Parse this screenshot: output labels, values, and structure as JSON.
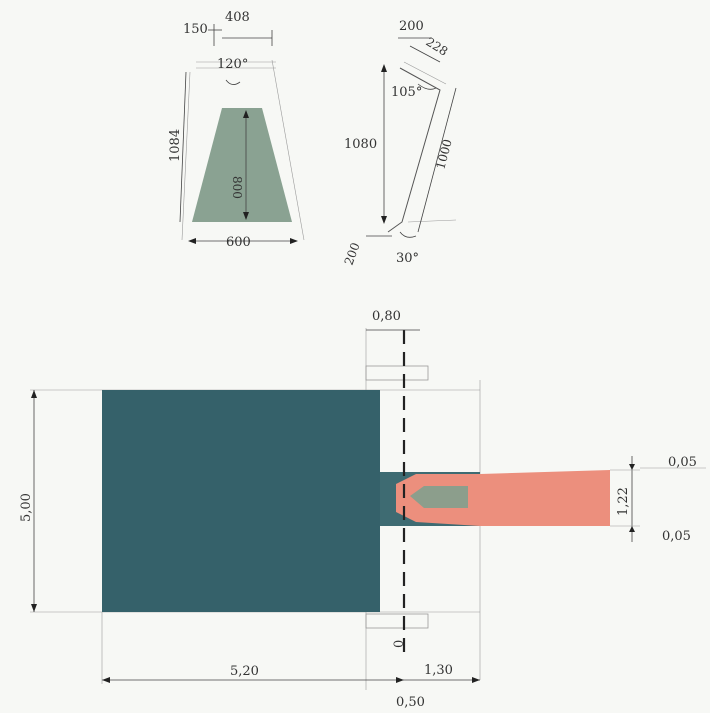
{
  "top_left_detail": {
    "dim_150": "150",
    "dim_408": "408",
    "angle_120": "120°",
    "dim_1084": "1084",
    "dim_800": "800",
    "dim_600": "600"
  },
  "top_right_detail": {
    "dim_200_top": "200",
    "dim_228": "228",
    "angle_105": "105°",
    "dim_1080": "1080",
    "dim_1000": "1000",
    "dim_200_bottom": "200",
    "angle_30": "30°"
  },
  "plan": {
    "dim_080": "0,80",
    "dim_500": "5,00",
    "dim_005_top": "0,05",
    "dim_122": "1,22",
    "dim_005_bottom": "0,05",
    "dim_520": "5,20",
    "dim_130": "1,30",
    "dim_050": "0,50",
    "axis_0": "0"
  },
  "colors": {
    "tank": "#35616a",
    "channel": "#3e6b72",
    "trapezoid_fill": "#8aa292",
    "model": "#ec8f7d",
    "model_inner": "#8c9e8c"
  }
}
